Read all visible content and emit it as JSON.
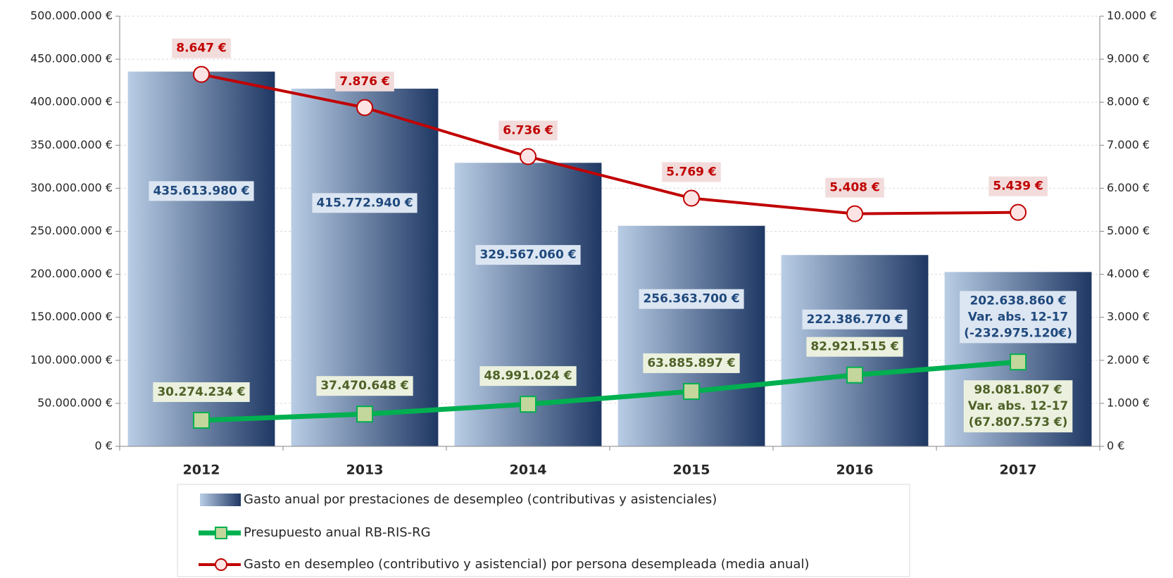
{
  "chart_data": {
    "type": "combo",
    "categories": [
      "2012",
      "2013",
      "2014",
      "2015",
      "2016",
      "2017"
    ],
    "ylim": [
      0,
      500000000
    ],
    "yticks": [
      {
        "value": 0,
        "label": "0 €"
      },
      {
        "value": 50000000,
        "label": "50.000.000 €"
      },
      {
        "value": 100000000,
        "label": "100.000.000 €"
      },
      {
        "value": 150000000,
        "label": "150.000.000 €"
      },
      {
        "value": 200000000,
        "label": "200.000.000 €"
      },
      {
        "value": 250000000,
        "label": "250.000.000 €"
      },
      {
        "value": 300000000,
        "label": "300.000.000 €"
      },
      {
        "value": 350000000,
        "label": "350.000.000 €"
      },
      {
        "value": 400000000,
        "label": "400.000.000 €"
      },
      {
        "value": 450000000,
        "label": "450.000.000 €"
      },
      {
        "value": 500000000,
        "label": "500.000.000 €"
      }
    ],
    "y2lim": [
      0,
      10000
    ],
    "y2ticks": [
      {
        "value": 0,
        "label": "0 €"
      },
      {
        "value": 1000,
        "label": "1.000 €"
      },
      {
        "value": 2000,
        "label": "2.000 €"
      },
      {
        "value": 3000,
        "label": "3.000 €"
      },
      {
        "value": 4000,
        "label": "4.000 €"
      },
      {
        "value": 5000,
        "label": "5.000 €"
      },
      {
        "value": 6000,
        "label": "6.000 €"
      },
      {
        "value": 7000,
        "label": "7.000 €"
      },
      {
        "value": 8000,
        "label": "8.000 €"
      },
      {
        "value": 9000,
        "label": "9.000 €"
      },
      {
        "value": 10000,
        "label": "10.000 €"
      }
    ],
    "grid": true,
    "legend": "bottom",
    "series": [
      {
        "name": "Gasto anual por prestaciones de desempleo (contributivas y asistenciales)",
        "type": "bar",
        "color": "#1f3864",
        "gradient_from": "#b9cde5",
        "label_fill": "#dce6f2",
        "label_color": "#1f497d",
        "values": [
          435613980,
          415772940,
          329567060,
          256363700,
          222386770,
          202638860
        ],
        "value_labels": [
          "435.613.980 €",
          "415.772.940 €",
          "329.567.060 €",
          "256.363.700 €",
          "222.386.770 €",
          "202.638.860 €"
        ],
        "note": [
          "Var. abs. 12-17",
          "(-232.975.120€)"
        ]
      },
      {
        "name": "Presupuesto anual RB-RIS-RG",
        "type": "line",
        "marker": "square",
        "color": "#00b050",
        "marker_fill": "#c3d69b",
        "label_fill": "#ebf1de",
        "label_color": "#4f6228",
        "values": [
          30274234,
          37470648,
          48991024,
          63885897,
          82921515,
          98081807
        ],
        "value_labels": [
          "30.274.234 €",
          "37.470.648 €",
          "48.991.024 €",
          "63.885.897 €",
          "82.921.515 €",
          "98.081.807 €"
        ],
        "note": [
          "Var. abs. 12-17",
          "(67.807.573 €)"
        ]
      },
      {
        "name": "Gasto en desempleo (contributivo y asistencial) por persona desempleada (media anual)",
        "type": "line",
        "marker": "circle",
        "axis": "y2",
        "color": "#c00000",
        "marker_fill": "#fce4e4",
        "label_fill": "#f2dcdb",
        "label_color": "#c00000",
        "values": [
          8647,
          7876,
          6736,
          5769,
          5408,
          5439
        ],
        "value_labels": [
          "8.647 €",
          "7.876 €",
          "6.736 €",
          "5.769 €",
          "5.408 €",
          "5.439 €"
        ]
      }
    ]
  }
}
